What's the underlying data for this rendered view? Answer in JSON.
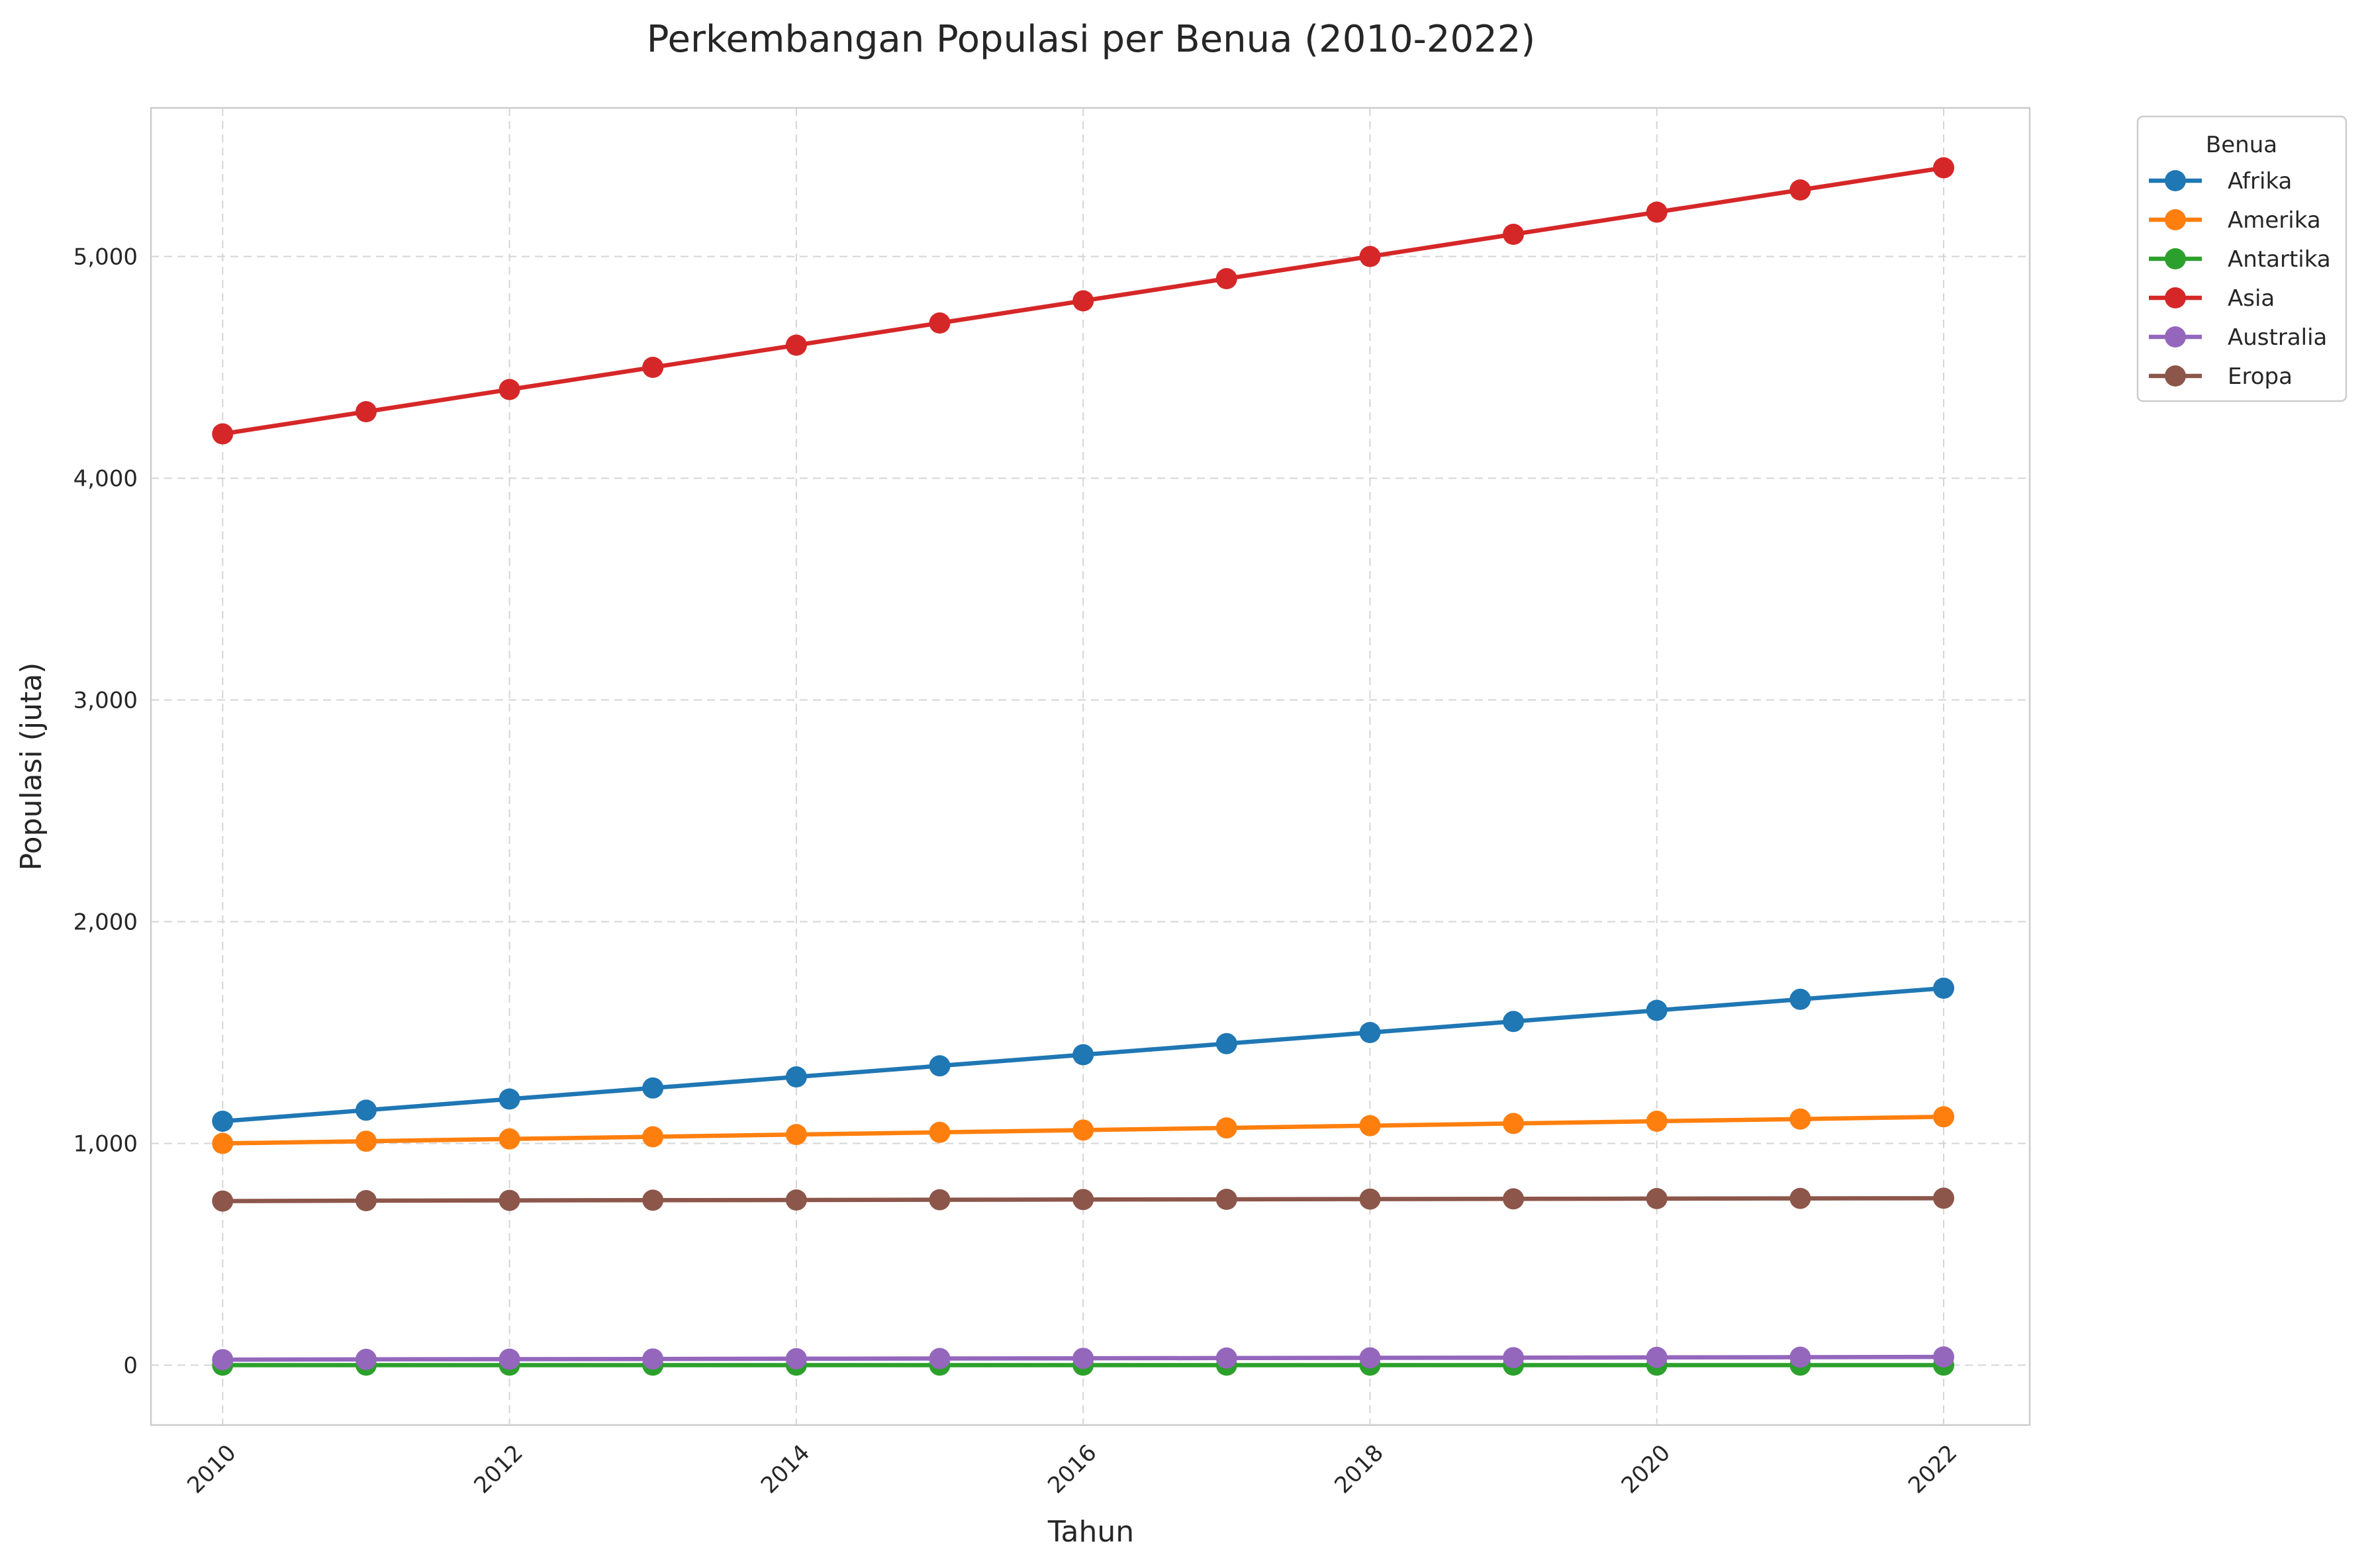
{
  "chart_data": {
    "type": "line",
    "title": "Perkembangan Populasi per Benua (2010-2022)",
    "xlabel": "Tahun",
    "ylabel": "Populasi (juta)",
    "x": [
      2010,
      2011,
      2012,
      2013,
      2014,
      2015,
      2016,
      2017,
      2018,
      2019,
      2020,
      2021,
      2022
    ],
    "x_ticks": [
      "2010",
      "2012",
      "2014",
      "2016",
      "2018",
      "2020",
      "2022"
    ],
    "y_ticks": [
      "0",
      "1,000",
      "2,000",
      "3,000",
      "4,000",
      "5,000"
    ],
    "xlim": [
      2009.5,
      2022.6
    ],
    "ylim": [
      -270,
      5670
    ],
    "grid": true,
    "legend_title": "Benua",
    "legend_position": "outside-top-right",
    "series": [
      {
        "name": "Afrika",
        "color": "#1f77b4",
        "values": [
          1100,
          1150,
          1200,
          1250,
          1300,
          1350,
          1400,
          1450,
          1500,
          1550,
          1600,
          1650,
          1700
        ]
      },
      {
        "name": "Amerika",
        "color": "#ff7f0e",
        "values": [
          1000,
          1010,
          1020,
          1030,
          1040,
          1050,
          1060,
          1070,
          1080,
          1090,
          1100,
          1110,
          1120
        ]
      },
      {
        "name": "Antartika",
        "color": "#2ca02c",
        "values": [
          0,
          0,
          0,
          0,
          0,
          0,
          0,
          0,
          0,
          0,
          0,
          0,
          0
        ]
      },
      {
        "name": "Asia",
        "color": "#d62728",
        "values": [
          4200,
          4300,
          4400,
          4500,
          4600,
          4700,
          4800,
          4900,
          5000,
          5100,
          5200,
          5300,
          5400
        ]
      },
      {
        "name": "Australia",
        "color": "#9467bd",
        "values": [
          25,
          26,
          27,
          28,
          29,
          30,
          31,
          32,
          33,
          34,
          35,
          36,
          37
        ]
      },
      {
        "name": "Eropa",
        "color": "#8c564b",
        "values": [
          740,
          742,
          743,
          744,
          745,
          746,
          747,
          748,
          749,
          750,
          751,
          752,
          753
        ]
      }
    ]
  }
}
